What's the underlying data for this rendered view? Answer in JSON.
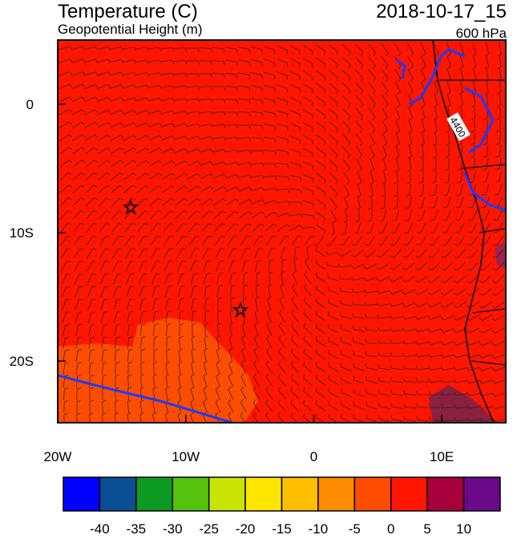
{
  "header": {
    "title": "Temperature (C)",
    "subtitle": "Geopotential Height (m)",
    "date": "2018-10-17_15",
    "level": "600 hPa"
  },
  "map": {
    "xlim": [
      -20,
      15
    ],
    "ylim": [
      -24.8,
      5
    ],
    "xticks": [
      {
        "value": -20,
        "label": "20W"
      },
      {
        "value": -10,
        "label": "10W"
      },
      {
        "value": 0,
        "label": "0"
      },
      {
        "value": 10,
        "label": "10E"
      }
    ],
    "yticks": [
      {
        "value": 0,
        "label": "0"
      },
      {
        "value": -10,
        "label": "10S"
      },
      {
        "value": -20,
        "label": "20S"
      }
    ],
    "contour_label": "4400"
  },
  "colorbar": {
    "colors": [
      "#0000ff",
      "#0a4f96",
      "#0c9a22",
      "#55c20c",
      "#c8e400",
      "#ffe600",
      "#ffbf00",
      "#ff8c00",
      "#ff4c00",
      "#ff1500",
      "#a8003c",
      "#6a0a8a"
    ],
    "levels": [
      -40,
      -35,
      -30,
      -25,
      -20,
      -15,
      -10,
      -5,
      0,
      5,
      10
    ]
  }
}
